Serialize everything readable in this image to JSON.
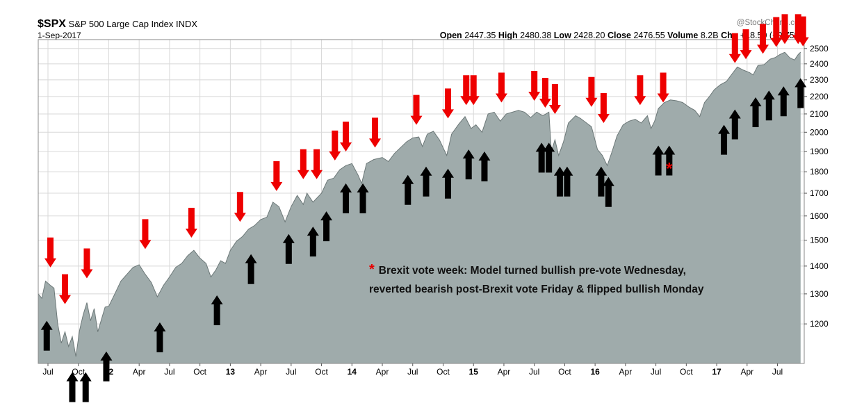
{
  "header": {
    "symbol": "$SPX",
    "name": "S&P 500 Large Cap Index",
    "exchange": "INDX",
    "date": "1-Sep-2017",
    "watermark": "@StockCharts.com",
    "ohlc": {
      "open_label": "Open",
      "open": "2447.35",
      "high_label": "High",
      "high": "2480.38",
      "low_label": "Low",
      "low": "2428.20",
      "close_label": "Close",
      "close": "2476.55",
      "volume_label": "Volume",
      "volume": "8.2B",
      "chg_label": "Chg",
      "chg": "+18.50 (+0.75%)"
    }
  },
  "annotation": {
    "star": "*",
    "line1": "Brexit vote week: Model turned bullish pre-vote Wednesday,",
    "line2": "reverted bearish post-Brexit vote Friday & flipped bullish Monday"
  },
  "chart_data": {
    "type": "area",
    "yscale": "log",
    "ylim": [
      1080,
      2560
    ],
    "xlim": [
      2011.42,
      2017.72
    ],
    "grid": true,
    "fill_color": "#9fabab",
    "line_color": "#6c7878",
    "yticks": [
      1200,
      1300,
      1400,
      1500,
      1600,
      1700,
      1800,
      1900,
      2000,
      2100,
      2200,
      2300,
      2400,
      2500
    ],
    "xticks": [
      {
        "x": 2011.5,
        "label": "Jul",
        "bold": false
      },
      {
        "x": 2011.75,
        "label": "Oct",
        "bold": false
      },
      {
        "x": 2012.0,
        "label": "12",
        "bold": true
      },
      {
        "x": 2012.25,
        "label": "Apr",
        "bold": false
      },
      {
        "x": 2012.5,
        "label": "Jul",
        "bold": false
      },
      {
        "x": 2012.75,
        "label": "Oct",
        "bold": false
      },
      {
        "x": 2013.0,
        "label": "13",
        "bold": true
      },
      {
        "x": 2013.25,
        "label": "Apr",
        "bold": false
      },
      {
        "x": 2013.5,
        "label": "Jul",
        "bold": false
      },
      {
        "x": 2013.75,
        "label": "Oct",
        "bold": false
      },
      {
        "x": 2014.0,
        "label": "14",
        "bold": true
      },
      {
        "x": 2014.25,
        "label": "Apr",
        "bold": false
      },
      {
        "x": 2014.5,
        "label": "Jul",
        "bold": false
      },
      {
        "x": 2014.75,
        "label": "Oct",
        "bold": false
      },
      {
        "x": 2015.0,
        "label": "15",
        "bold": true
      },
      {
        "x": 2015.25,
        "label": "Apr",
        "bold": false
      },
      {
        "x": 2015.5,
        "label": "Jul",
        "bold": false
      },
      {
        "x": 2015.75,
        "label": "Oct",
        "bold": false
      },
      {
        "x": 2016.0,
        "label": "16",
        "bold": true
      },
      {
        "x": 2016.25,
        "label": "Apr",
        "bold": false
      },
      {
        "x": 2016.5,
        "label": "Jul",
        "bold": false
      },
      {
        "x": 2016.75,
        "label": "Oct",
        "bold": false
      },
      {
        "x": 2017.0,
        "label": "17",
        "bold": true
      },
      {
        "x": 2017.25,
        "label": "Apr",
        "bold": false
      },
      {
        "x": 2017.5,
        "label": "Jul",
        "bold": false
      }
    ],
    "series": [
      {
        "points": [
          [
            2011.42,
            1300
          ],
          [
            2011.45,
            1285
          ],
          [
            2011.48,
            1345
          ],
          [
            2011.52,
            1330
          ],
          [
            2011.55,
            1320
          ],
          [
            2011.58,
            1200
          ],
          [
            2011.61,
            1140
          ],
          [
            2011.64,
            1175
          ],
          [
            2011.67,
            1130
          ],
          [
            2011.7,
            1160
          ],
          [
            2011.73,
            1100
          ],
          [
            2011.76,
            1180
          ],
          [
            2011.79,
            1230
          ],
          [
            2011.82,
            1270
          ],
          [
            2011.85,
            1210
          ],
          [
            2011.88,
            1250
          ],
          [
            2011.91,
            1175
          ],
          [
            2011.94,
            1215
          ],
          [
            2011.97,
            1255
          ],
          [
            2012.0,
            1258
          ],
          [
            2012.05,
            1300
          ],
          [
            2012.1,
            1345
          ],
          [
            2012.15,
            1370
          ],
          [
            2012.2,
            1395
          ],
          [
            2012.25,
            1405
          ],
          [
            2012.3,
            1370
          ],
          [
            2012.35,
            1340
          ],
          [
            2012.4,
            1290
          ],
          [
            2012.45,
            1330
          ],
          [
            2012.5,
            1360
          ],
          [
            2012.55,
            1395
          ],
          [
            2012.6,
            1410
          ],
          [
            2012.65,
            1440
          ],
          [
            2012.7,
            1460
          ],
          [
            2012.75,
            1430
          ],
          [
            2012.8,
            1410
          ],
          [
            2012.84,
            1360
          ],
          [
            2012.88,
            1385
          ],
          [
            2012.92,
            1420
          ],
          [
            2012.96,
            1410
          ],
          [
            2013.0,
            1460
          ],
          [
            2013.05,
            1495
          ],
          [
            2013.1,
            1515
          ],
          [
            2013.15,
            1545
          ],
          [
            2013.2,
            1560
          ],
          [
            2013.25,
            1585
          ],
          [
            2013.3,
            1595
          ],
          [
            2013.35,
            1660
          ],
          [
            2013.4,
            1640
          ],
          [
            2013.45,
            1575
          ],
          [
            2013.5,
            1640
          ],
          [
            2013.55,
            1690
          ],
          [
            2013.6,
            1650
          ],
          [
            2013.63,
            1700
          ],
          [
            2013.68,
            1660
          ],
          [
            2013.75,
            1700
          ],
          [
            2013.8,
            1760
          ],
          [
            2013.85,
            1770
          ],
          [
            2013.9,
            1810
          ],
          [
            2013.95,
            1830
          ],
          [
            2014.0,
            1840
          ],
          [
            2014.05,
            1785
          ],
          [
            2014.08,
            1745
          ],
          [
            2014.12,
            1840
          ],
          [
            2014.18,
            1860
          ],
          [
            2014.25,
            1870
          ],
          [
            2014.3,
            1850
          ],
          [
            2014.35,
            1890
          ],
          [
            2014.4,
            1920
          ],
          [
            2014.45,
            1950
          ],
          [
            2014.5,
            1970
          ],
          [
            2014.55,
            1975
          ],
          [
            2014.58,
            1925
          ],
          [
            2014.62,
            1990
          ],
          [
            2014.67,
            2005
          ],
          [
            2014.72,
            1960
          ],
          [
            2014.78,
            1880
          ],
          [
            2014.82,
            1990
          ],
          [
            2014.88,
            2045
          ],
          [
            2014.93,
            2085
          ],
          [
            2014.98,
            2020
          ],
          [
            2015.02,
            2040
          ],
          [
            2015.07,
            2000
          ],
          [
            2015.12,
            2100
          ],
          [
            2015.17,
            2110
          ],
          [
            2015.22,
            2060
          ],
          [
            2015.27,
            2100
          ],
          [
            2015.32,
            2110
          ],
          [
            2015.37,
            2120
          ],
          [
            2015.42,
            2110
          ],
          [
            2015.47,
            2080
          ],
          [
            2015.52,
            2110
          ],
          [
            2015.57,
            2090
          ],
          [
            2015.62,
            2110
          ],
          [
            2015.64,
            1900
          ],
          [
            2015.67,
            1960
          ],
          [
            2015.7,
            1880
          ],
          [
            2015.74,
            1950
          ],
          [
            2015.78,
            2050
          ],
          [
            2015.84,
            2090
          ],
          [
            2015.88,
            2075
          ],
          [
            2015.93,
            2050
          ],
          [
            2015.97,
            2030
          ],
          [
            2016.02,
            1910
          ],
          [
            2016.06,
            1880
          ],
          [
            2016.1,
            1830
          ],
          [
            2016.14,
            1900
          ],
          [
            2016.18,
            1980
          ],
          [
            2016.23,
            2040
          ],
          [
            2016.28,
            2060
          ],
          [
            2016.33,
            2070
          ],
          [
            2016.38,
            2050
          ],
          [
            2016.43,
            2090
          ],
          [
            2016.46,
            2020
          ],
          [
            2016.49,
            2060
          ],
          [
            2016.52,
            2130
          ],
          [
            2016.57,
            2165
          ],
          [
            2016.62,
            2180
          ],
          [
            2016.67,
            2175
          ],
          [
            2016.72,
            2165
          ],
          [
            2016.77,
            2140
          ],
          [
            2016.82,
            2120
          ],
          [
            2016.86,
            2085
          ],
          [
            2016.9,
            2165
          ],
          [
            2016.94,
            2200
          ],
          [
            2016.98,
            2240
          ],
          [
            2017.03,
            2270
          ],
          [
            2017.08,
            2290
          ],
          [
            2017.13,
            2340
          ],
          [
            2017.17,
            2380
          ],
          [
            2017.22,
            2360
          ],
          [
            2017.27,
            2345
          ],
          [
            2017.3,
            2330
          ],
          [
            2017.34,
            2390
          ],
          [
            2017.39,
            2395
          ],
          [
            2017.44,
            2430
          ],
          [
            2017.48,
            2440
          ],
          [
            2017.52,
            2460
          ],
          [
            2017.56,
            2475
          ],
          [
            2017.6,
            2440
          ],
          [
            2017.64,
            2425
          ],
          [
            2017.67,
            2460
          ],
          [
            2017.69,
            2476
          ]
        ]
      }
    ],
    "red_arrows_down": [
      [
        2011.52,
        1395
      ],
      [
        2011.64,
        1265
      ],
      [
        2011.82,
        1355
      ],
      [
        2012.3,
        1465
      ],
      [
        2012.68,
        1510
      ],
      [
        2013.08,
        1575
      ],
      [
        2013.38,
        1710
      ],
      [
        2013.6,
        1765
      ],
      [
        2013.71,
        1765
      ],
      [
        2013.86,
        1855
      ],
      [
        2013.95,
        1900
      ],
      [
        2014.19,
        1920
      ],
      [
        2014.53,
        2040
      ],
      [
        2014.79,
        2075
      ],
      [
        2014.94,
        2150
      ],
      [
        2015.0,
        2150
      ],
      [
        2015.23,
        2165
      ],
      [
        2015.5,
        2175
      ],
      [
        2015.59,
        2135
      ],
      [
        2015.67,
        2100
      ],
      [
        2015.97,
        2140
      ],
      [
        2016.07,
        2050
      ],
      [
        2016.37,
        2150
      ],
      [
        2016.56,
        2165
      ],
      [
        2017.15,
        2405
      ],
      [
        2017.24,
        2430
      ],
      [
        2017.38,
        2465
      ],
      [
        2017.49,
        2510
      ],
      [
        2017.56,
        2530
      ],
      [
        2017.67,
        2530
      ],
      [
        2017.71,
        2515
      ]
    ],
    "black_arrows_up": [
      [
        2011.49,
        1210
      ],
      [
        2011.7,
        1055
      ],
      [
        2011.81,
        1055
      ],
      [
        2011.98,
        1115
      ],
      [
        2012.42,
        1205
      ],
      [
        2012.89,
        1295
      ],
      [
        2013.17,
        1445
      ],
      [
        2013.48,
        1525
      ],
      [
        2013.68,
        1555
      ],
      [
        2013.79,
        1620
      ],
      [
        2013.95,
        1745
      ],
      [
        2014.09,
        1745
      ],
      [
        2014.46,
        1785
      ],
      [
        2014.61,
        1825
      ],
      [
        2014.79,
        1815
      ],
      [
        2014.96,
        1910
      ],
      [
        2015.09,
        1900
      ],
      [
        2015.56,
        1945
      ],
      [
        2015.62,
        1945
      ],
      [
        2015.71,
        1825
      ],
      [
        2015.77,
        1825
      ],
      [
        2016.05,
        1825
      ],
      [
        2016.11,
        1775
      ],
      [
        2016.52,
        1930
      ],
      [
        2016.61,
        1930
      ],
      [
        2017.06,
        2040
      ],
      [
        2017.15,
        2125
      ],
      [
        2017.32,
        2195
      ],
      [
        2017.43,
        2235
      ],
      [
        2017.55,
        2260
      ],
      [
        2017.69,
        2310
      ]
    ],
    "red_asterisk": [
      2016.61,
      1830
    ]
  }
}
